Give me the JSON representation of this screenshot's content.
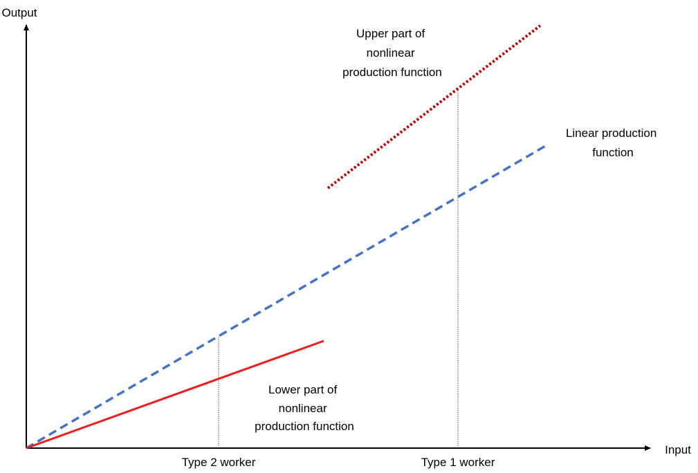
{
  "axes": {
    "y_label": "Output",
    "x_label": "Input"
  },
  "curves": [
    {
      "label_lines": [
        "Upper part of",
        "nonlinear",
        "production function"
      ]
    },
    {
      "label_lines": [
        "Linear production",
        "function"
      ]
    },
    {
      "label_lines": [
        "Lower part of",
        "nonlinear",
        "production function"
      ]
    }
  ],
  "workers": [
    "Type 2 worker",
    "Type 1 worker"
  ]
}
